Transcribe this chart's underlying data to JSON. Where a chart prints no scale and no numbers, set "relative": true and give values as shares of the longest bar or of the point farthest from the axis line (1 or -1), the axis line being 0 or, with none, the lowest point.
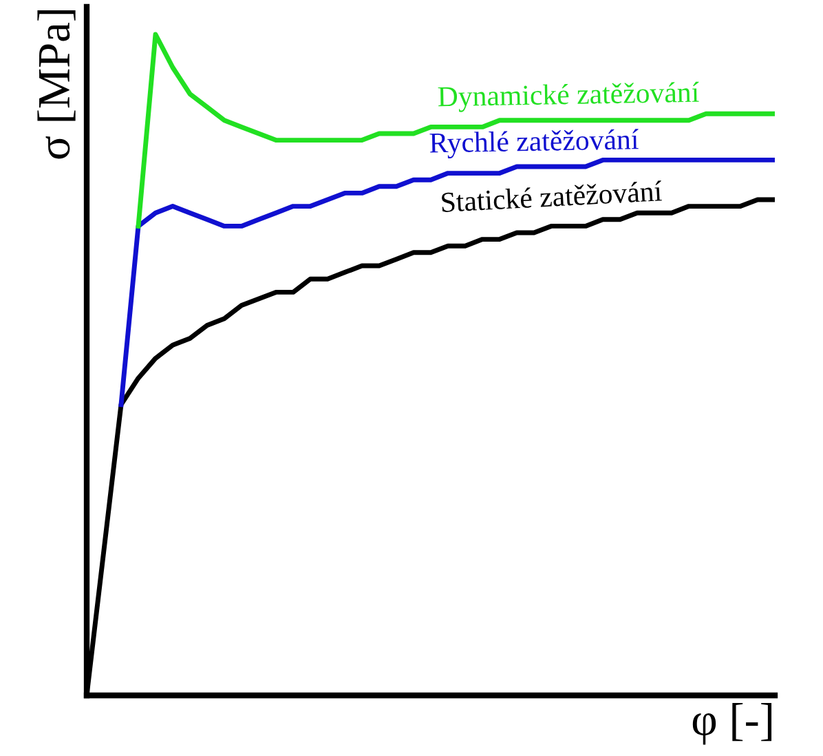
{
  "chart_data": {
    "type": "line",
    "relative": true,
    "xlabel": "φ [-]",
    "ylabel": "σ [MPa]",
    "legend": false,
    "marker": "none",
    "line_style": "solid",
    "categories": [
      null,
      null,
      null,
      null,
      null,
      null,
      null,
      null,
      null,
      null,
      null,
      null,
      null,
      null,
      null,
      null,
      null,
      null,
      null,
      null,
      null,
      null,
      null,
      null,
      null,
      null,
      null,
      null,
      null,
      null,
      null,
      null,
      null,
      null,
      null,
      null,
      null,
      null,
      null,
      null,
      null
    ],
    "series": [
      {
        "name": "Statické zatěžování",
        "color": "#000000",
        "values": [
          0,
          0.22,
          0.44,
          0.48,
          0.51,
          0.53,
          0.54,
          0.56,
          0.57,
          0.59,
          0.6,
          0.61,
          0.61,
          0.63,
          0.63,
          0.64,
          0.65,
          0.65,
          0.66,
          0.67,
          0.67,
          0.68,
          0.68,
          0.69,
          0.69,
          0.7,
          0.7,
          0.71,
          0.71,
          0.71,
          0.72,
          0.72,
          0.73,
          0.73,
          0.73,
          0.74,
          0.74,
          0.74,
          0.74,
          0.75,
          0.75
        ]
      },
      {
        "name": "Rychlé zatěžování",
        "color": "#1010d0",
        "values": [
          null,
          null,
          0.44,
          0.71,
          0.73,
          0.74,
          0.73,
          0.72,
          0.71,
          0.71,
          0.72,
          0.73,
          0.74,
          0.74,
          0.75,
          0.76,
          0.76,
          0.77,
          0.77,
          0.78,
          0.78,
          0.79,
          0.79,
          0.79,
          0.79,
          0.8,
          0.8,
          0.8,
          0.8,
          0.8,
          0.81,
          0.81,
          0.81,
          0.81,
          0.81,
          0.81,
          0.81,
          0.81,
          0.81,
          0.81,
          0.81
        ]
      },
      {
        "name": "Dynamické zatěžování",
        "color": "#22e022",
        "values": [
          null,
          null,
          null,
          0.71,
          1.0,
          0.95,
          0.91,
          0.89,
          0.87,
          0.86,
          0.85,
          0.84,
          0.84,
          0.84,
          0.84,
          0.84,
          0.84,
          0.85,
          0.85,
          0.85,
          0.86,
          0.86,
          0.86,
          0.86,
          0.87,
          0.87,
          0.87,
          0.87,
          0.87,
          0.87,
          0.87,
          0.87,
          0.87,
          0.87,
          0.87,
          0.87,
          0.88,
          0.88,
          0.88,
          0.88,
          0.88
        ]
      }
    ]
  }
}
